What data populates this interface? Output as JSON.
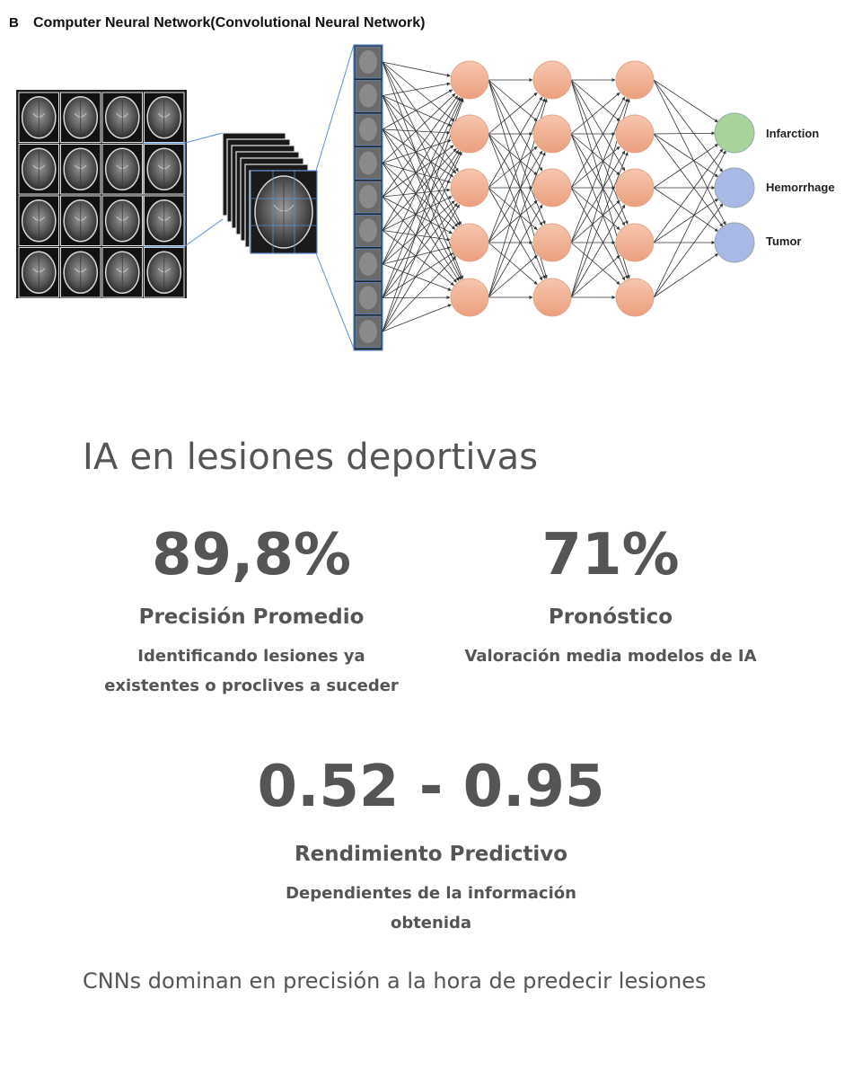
{
  "figure": {
    "panel_letter": "B",
    "caption": "Computer Neural Network(Convolutional Neural Network)",
    "outputs": [
      {
        "label": "Infarction",
        "color": "#a6d49a"
      },
      {
        "label": "Hemorrhage",
        "color": "#a9b9e6"
      },
      {
        "label": "Tumor",
        "color": "#a9b9e6"
      }
    ],
    "node_color": "#f2b59a"
  },
  "title": "IA en lesiones deportivas",
  "stats": [
    {
      "value": "89,8%",
      "label": "Precisión Promedio",
      "sub_line1": "Identificando lesiones ya",
      "sub_line2": "existentes o proclives a suceder"
    },
    {
      "value": "71%",
      "label": "Pronóstico",
      "sub_line1": "Valoración media modelos de IA"
    },
    {
      "value": "0.52 - 0.95",
      "label": "Rendimiento Predictivo",
      "sub_line1": "Dependientes de la información",
      "sub_line2": "obtenida"
    }
  ],
  "footer": "CNNs dominan en precisión a la hora de predecir lesiones"
}
